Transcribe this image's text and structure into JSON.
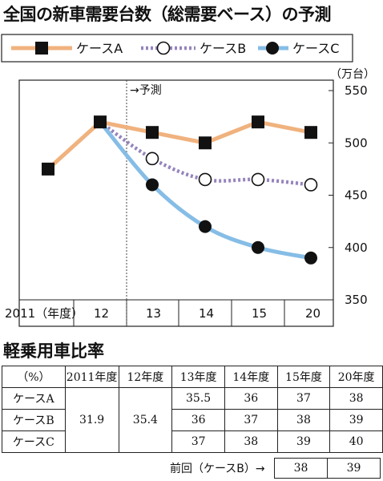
{
  "title": "全国の新車需要台数（総需要ベース）の予測",
  "chart_data": {
    "type": "line",
    "title": "全国の新車需要台数（総需要ベース）の予測",
    "unit": "（万台）",
    "forecast_label": "→予測",
    "x": [
      "2011（年度）",
      "12",
      "13",
      "14",
      "15",
      "20"
    ],
    "ylim": [
      350,
      550
    ],
    "yticks": [
      350,
      400,
      450,
      500,
      550
    ],
    "legend_position": "top",
    "series": [
      {
        "name": "ケースA",
        "values": [
          475,
          520,
          510,
          500,
          520,
          510
        ],
        "color": "#f0b27e",
        "style": "solid",
        "marker": "square"
      },
      {
        "name": "ケースB",
        "values": [
          null,
          520,
          485,
          465,
          465,
          460
        ],
        "color": "#9584bd",
        "style": "dotted",
        "marker": "open-circle"
      },
      {
        "name": "ケースC",
        "values": [
          null,
          520,
          460,
          420,
          400,
          390
        ],
        "color": "#86bde6",
        "style": "solid",
        "marker": "filled-circle"
      }
    ]
  },
  "ratio_table": {
    "title": "軽乗用車比率",
    "headers": [
      "（%）",
      "2011年度",
      "12年度",
      "13年度",
      "14年度",
      "15年度",
      "20年度"
    ],
    "rows": [
      {
        "label": "ケースA",
        "values": [
          "35.5",
          "36",
          "37",
          "38"
        ]
      },
      {
        "label": "ケースB",
        "values": [
          "36",
          "37",
          "38",
          "39"
        ]
      },
      {
        "label": "ケースC",
        "values": [
          "37",
          "38",
          "39",
          "40"
        ]
      }
    ],
    "shared_2011": "31.9",
    "shared_12": "35.4",
    "previous_label": "前回（ケースB）→",
    "previous_values": [
      "38",
      "39"
    ]
  }
}
